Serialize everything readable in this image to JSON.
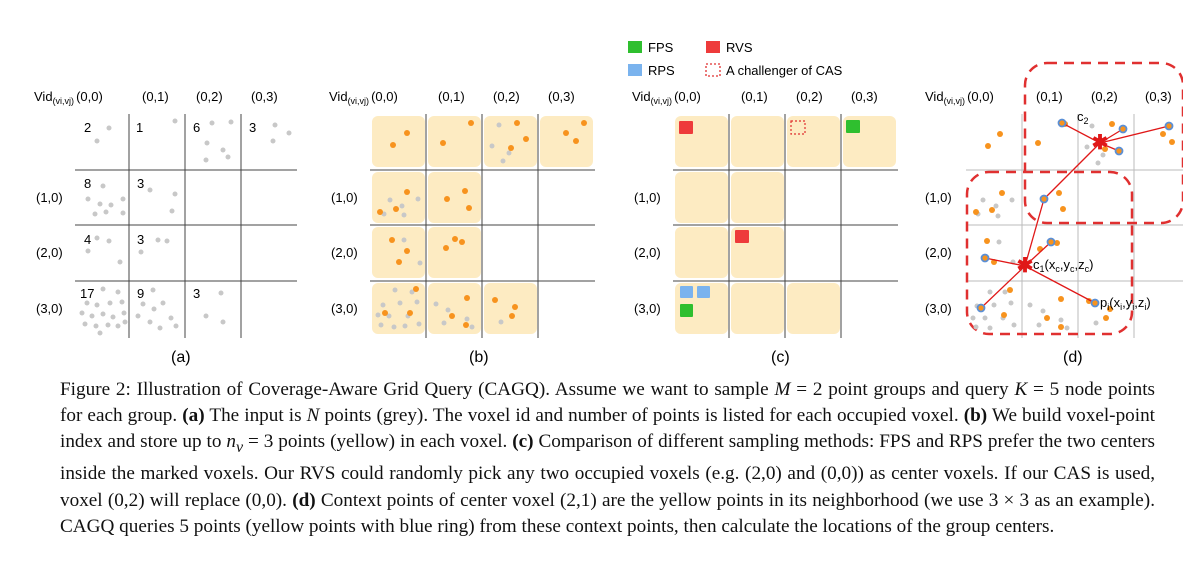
{
  "legend": {
    "fps": "FPS",
    "rvs": "RVS",
    "rps": "RPS",
    "cas": "A challenger of CAS"
  },
  "grid_labels": {
    "vid_main": "Vid",
    "vid_sub": "(vi,vj)",
    "vid_origin": "(0,0)",
    "col_1": "(0,1)",
    "col_2": "(0,2)",
    "col_3": "(0,3)",
    "row_1": "(1,0)",
    "row_2": "(2,0)",
    "row_3": "(3,0)"
  },
  "panel_a_counts": {
    "c00": "2",
    "c01": "1",
    "c02": "6",
    "c03": "3",
    "c10": "8",
    "c11": "3",
    "c20": "4",
    "c21": "3",
    "c30": "17",
    "c31": "9",
    "c32": "3"
  },
  "panel_d_labels": {
    "c2": "c",
    "c2_sub": "2",
    "c1": "c",
    "c1_sub": "1",
    "c1_coord": "(x",
    "c1_coord_x": "c",
    "c1_coord_y": ",y",
    "c1_coord_ys": "c",
    "c1_coord_z": ",z",
    "c1_coord_zs": "c",
    "c1_close": ")",
    "pi": "p",
    "pi_sub": "i",
    "pi_coord": "(x",
    "pi_xs": "i",
    "pi_y": ",y",
    "pi_ys": "i",
    "pi_z": ",z",
    "pi_zs": "i",
    "pi_close": ")"
  },
  "panel_tags": {
    "a": "(a)",
    "b": "(b)",
    "c": "(c)",
    "d": "(d)"
  },
  "caption": {
    "fig": "Figure 2: Illustration of Coverage-Aware Grid Query (CAGQ). Assume we want to sample ",
    "M": "M",
    "t1": " = 2 point groups and query ",
    "K": "K",
    "t2": " = 5 node points for each group. ",
    "a_tag": "(a)",
    "t3": " The input is ",
    "N": "N",
    "t4": " points (grey). The voxel id and number of points is listed for each occupied voxel. ",
    "b_tag": "(b)",
    "t5": " We build voxel-point index and store up to ",
    "nv": "n",
    "nv_sub": "v",
    "t6": " = 3 points (yellow) in each voxel. ",
    "c_tag": "(c)",
    "t7": " Comparison of different sampling methods: FPS and RPS prefer the two centers inside the marked voxels. Our RVS could randomly pick any two occupied voxels (e.g. (2,0) and (0,0)) as center voxels. If our CAS is used, voxel (0,2) will replace (0,0). ",
    "d_tag": "(d)",
    "t8": " Context points of center voxel (2,1) are the yellow points in its neighborhood (we use 3 × 3 as an example). CAGQ queries 5 points (yellow points with blue ring) from these context points, then calculate the locations of the group centers."
  },
  "colors": {
    "voxel_fill": "#fdebc2",
    "grey_point": "#c8c8c8",
    "orange_point": "#f7931e",
    "fps_green": "#2fbf2f",
    "rvs_red": "#ee3b3b",
    "rps_blue": "#7ab3ee",
    "cas_outline": "#e03030",
    "ring_blue": "#5a8fd6",
    "line_red": "#e01818"
  }
}
